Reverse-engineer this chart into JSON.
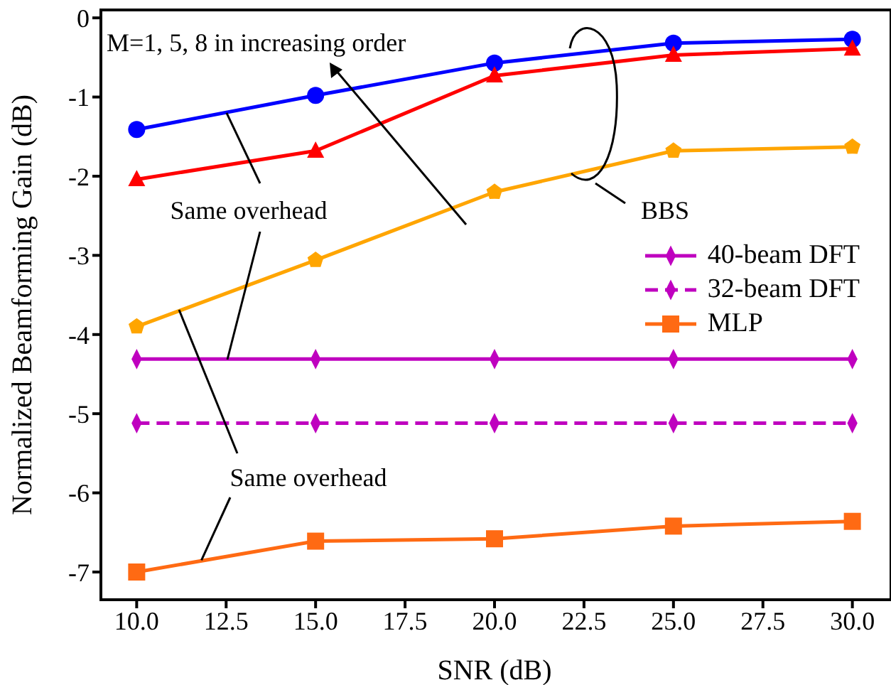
{
  "chart_data": {
    "type": "line",
    "xlabel": "SNR (dB)",
    "ylabel": "Normalized Beamforming Gain (dB)",
    "x": [
      10,
      15,
      20,
      25,
      30
    ],
    "xlim": [
      9,
      31
    ],
    "xticks": [
      {
        "value": 10,
        "label": "10.0"
      },
      {
        "value": 12.5,
        "label": "12.5"
      },
      {
        "value": 15,
        "label": "15.0"
      },
      {
        "value": 17.5,
        "label": "17.5"
      },
      {
        "value": 20,
        "label": "20.0"
      },
      {
        "value": 22.5,
        "label": "22.5"
      },
      {
        "value": 25,
        "label": "25.0"
      },
      {
        "value": 27.5,
        "label": "27.5"
      },
      {
        "value": 30,
        "label": "30.0"
      }
    ],
    "ylim": [
      -7.35,
      0.1
    ],
    "yticks": [
      -7,
      -6,
      -5,
      -4,
      -3,
      -2,
      -1,
      0
    ],
    "series": [
      {
        "color": "#0000ff",
        "marker": "circle",
        "values": [
          -1.41,
          -0.98,
          -0.57,
          -0.32,
          -0.27
        ]
      },
      {
        "color": "#ff0000",
        "marker": "triangle",
        "values": [
          -2.04,
          -1.68,
          -0.73,
          -0.47,
          -0.39
        ]
      },
      {
        "color": "#ffa500",
        "marker": "star",
        "values": [
          -3.9,
          -3.06,
          -2.2,
          -1.68,
          -1.63
        ]
      },
      {
        "name": "40-beam DFT",
        "color": "#bf00bf",
        "marker": "diamond",
        "line_style": "solid",
        "values": [
          -4.31,
          -4.31,
          -4.31,
          -4.31,
          -4.31
        ]
      },
      {
        "name": "32-beam DFT",
        "color": "#bf00bf",
        "marker": "diamond",
        "line_style": "dashed",
        "values": [
          -5.12,
          -5.12,
          -5.12,
          -5.12,
          -5.12
        ]
      },
      {
        "name": "MLP",
        "color": "#ff6a13",
        "marker": "square",
        "values": [
          -7.0,
          -6.61,
          -6.58,
          -6.42,
          -6.36
        ]
      }
    ],
    "annotations": [
      "M=1, 5, 8 in increasing order",
      {
        "text": "Same overhead",
        "x": 12.5,
        "y": -1.2
      },
      {
        "text": "Same overhead",
        "x": 11.8,
        "y": -6.85
      },
      "BBS"
    ],
    "legend": "right",
    "grid": false
  }
}
